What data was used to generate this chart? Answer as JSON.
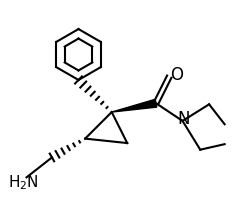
{
  "bg_color": "#ffffff",
  "line_color": "#000000",
  "line_width": 1.5,
  "figsize": [
    2.5,
    2.02
  ],
  "dpi": 100
}
